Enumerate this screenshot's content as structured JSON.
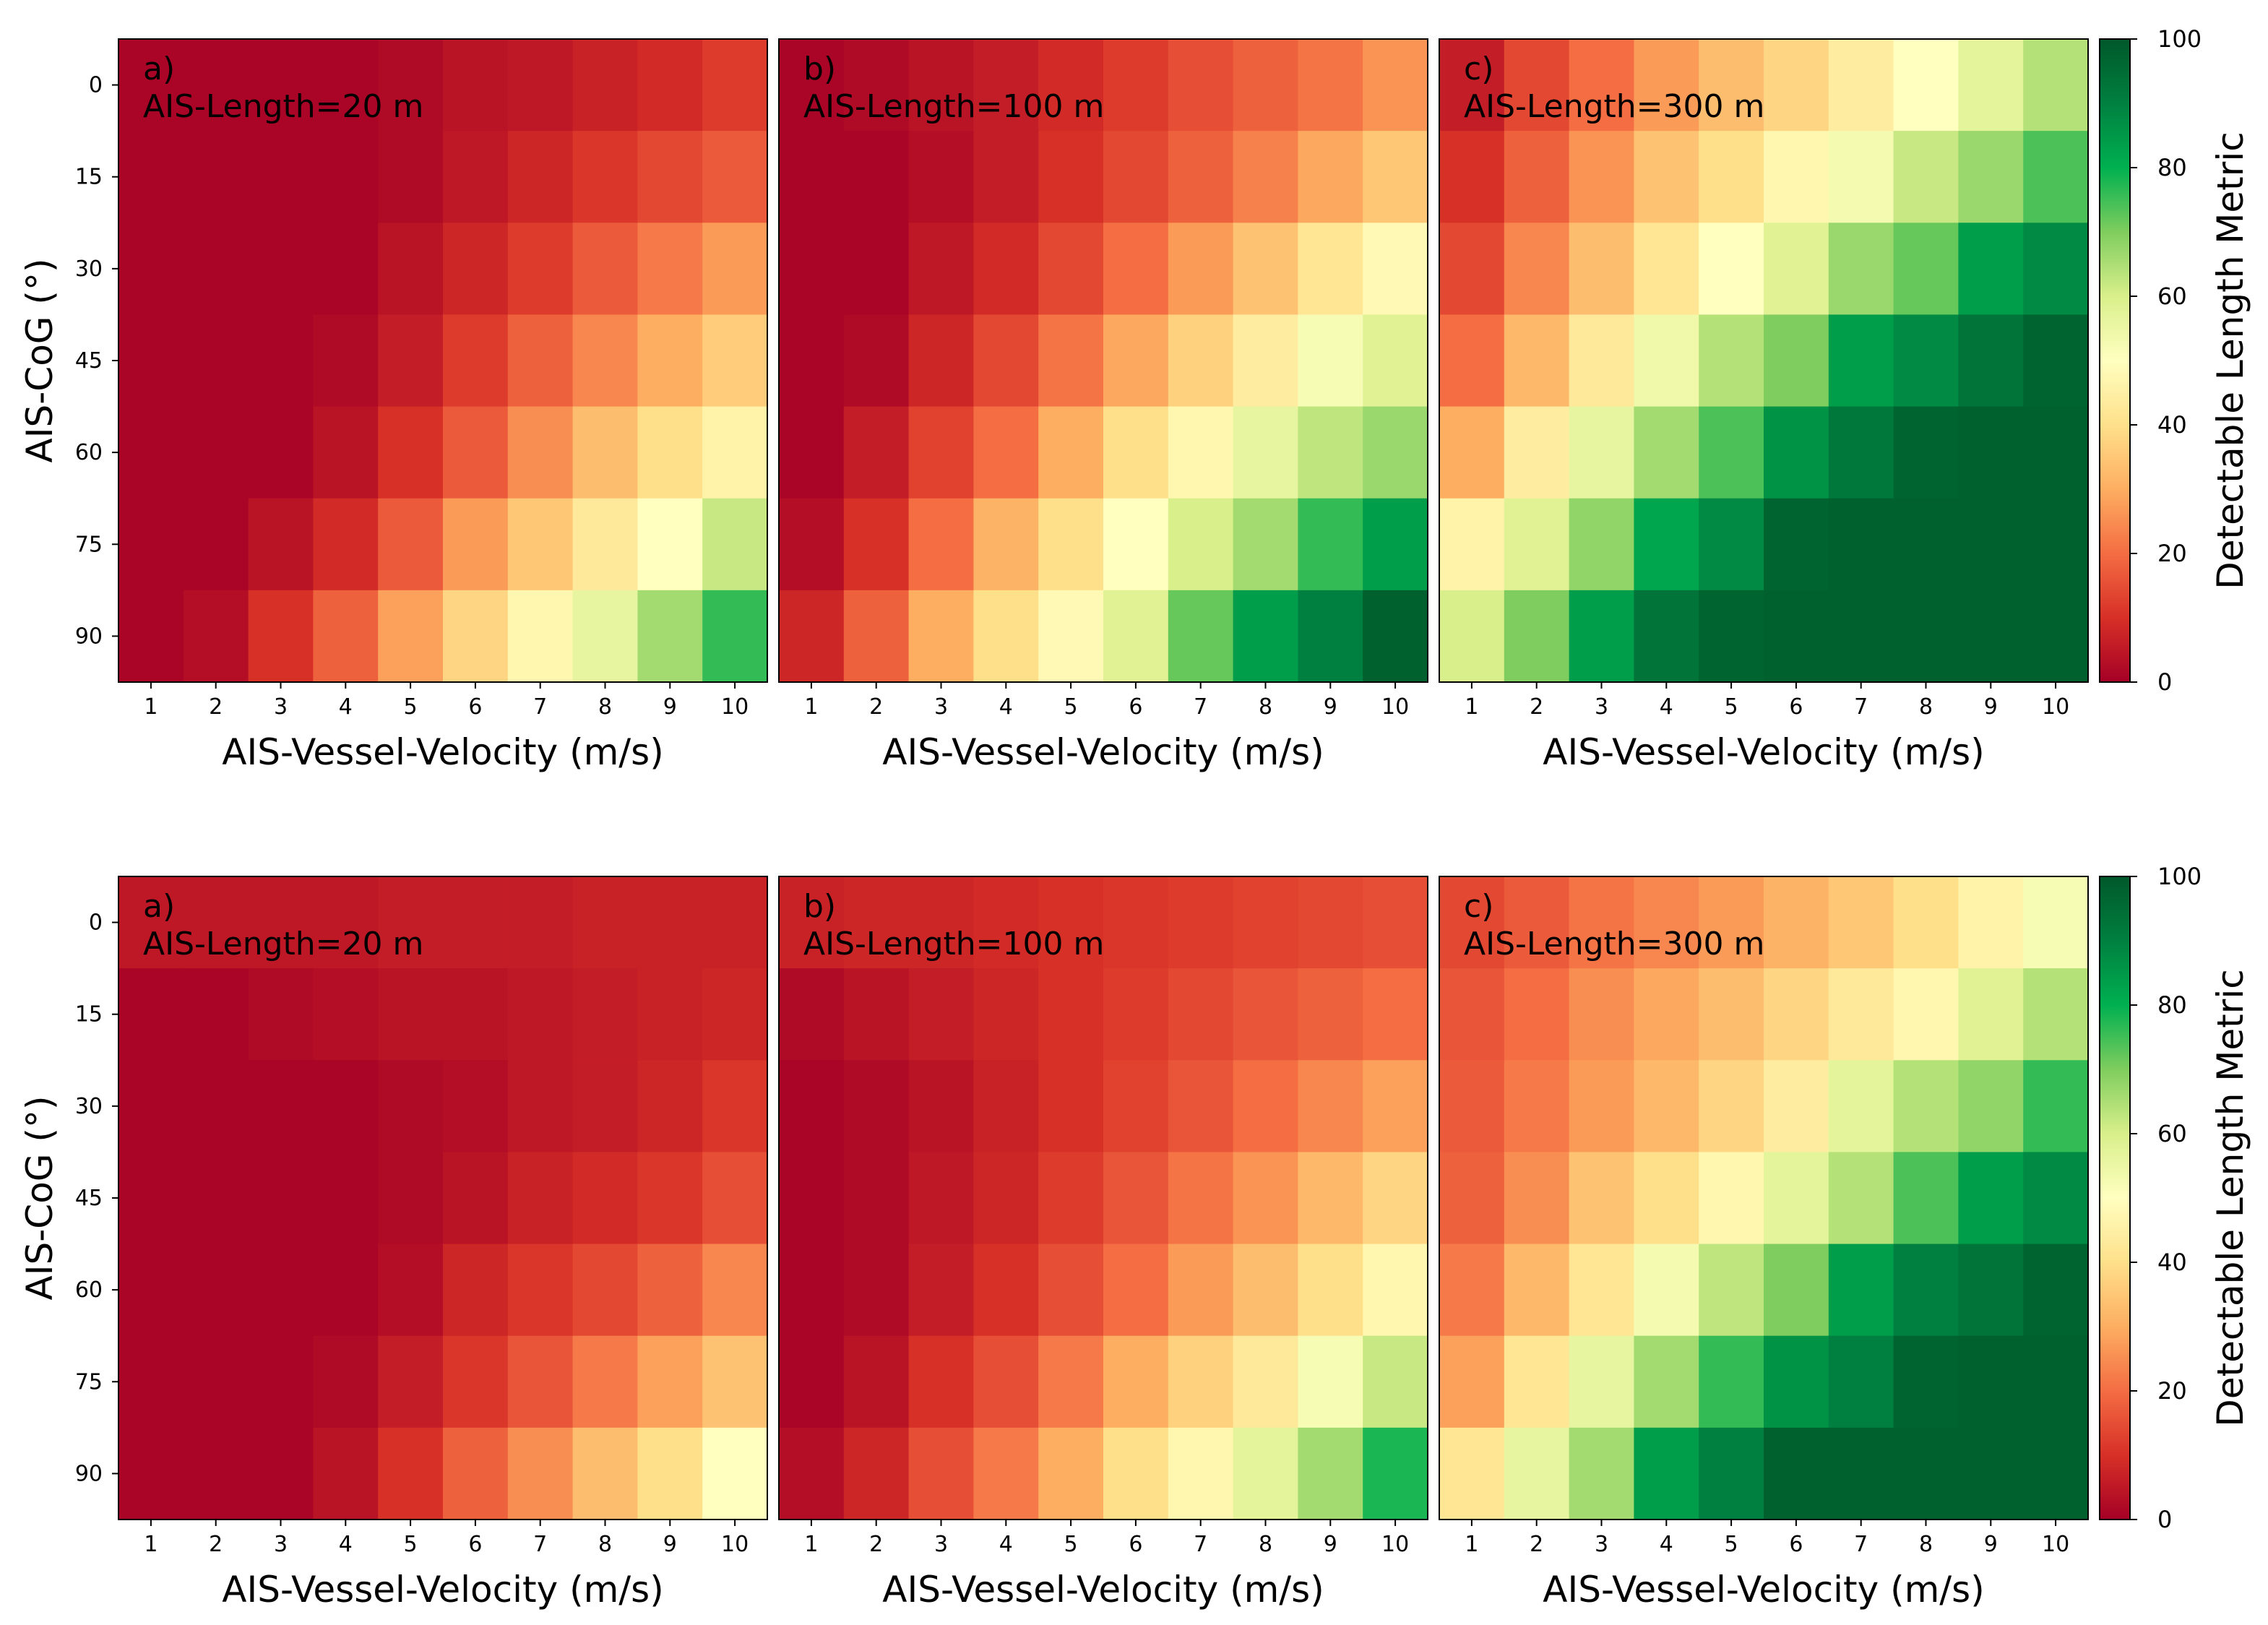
{
  "colorbar": {
    "label": "Detectable Length Metric",
    "range": [
      0,
      100
    ],
    "ticks": [
      "0",
      "20",
      "40",
      "60",
      "80",
      "100"
    ]
  },
  "axes": {
    "xlabel": "AIS-Vessel-Velocity (m/s)",
    "ylabel": "AIS-CoG (°)",
    "xticks": [
      "1",
      "2",
      "3",
      "4",
      "5",
      "6",
      "7",
      "8",
      "9",
      "10"
    ],
    "yticks": [
      "0",
      "15",
      "30",
      "45",
      "60",
      "75",
      "90"
    ]
  },
  "chart_data": [
    {
      "type": "heatmap",
      "row": "top",
      "panel": "a)",
      "title": "AIS-Length=20 m",
      "xlabel": "AIS-Vessel-Velocity (m/s)",
      "ylabel": "AIS-CoG (°)",
      "x": [
        1,
        2,
        3,
        4,
        5,
        6,
        7,
        8,
        9,
        10
      ],
      "y": [
        0,
        15,
        30,
        45,
        60,
        75,
        90
      ],
      "vrange": [
        0,
        100
      ],
      "values": [
        [
          1,
          1,
          1,
          1,
          2,
          4,
          5,
          7,
          9,
          12
        ],
        [
          1,
          1,
          1,
          1,
          2,
          5,
          8,
          11,
          14,
          17
        ],
        [
          1,
          1,
          1,
          1,
          4,
          8,
          12,
          17,
          22,
          27
        ],
        [
          1,
          1,
          1,
          2,
          6,
          12,
          18,
          24,
          30,
          36
        ],
        [
          1,
          1,
          1,
          4,
          10,
          17,
          25,
          33,
          40,
          46
        ],
        [
          1,
          1,
          4,
          9,
          17,
          27,
          35,
          43,
          50,
          62
        ],
        [
          1,
          3,
          10,
          18,
          28,
          38,
          47,
          56,
          66,
          76
        ]
      ]
    },
    {
      "type": "heatmap",
      "row": "top",
      "panel": "b)",
      "title": "AIS-Length=100 m",
      "xlabel": "AIS-Vessel-Velocity (m/s)",
      "ylabel": "",
      "x": [
        1,
        2,
        3,
        4,
        5,
        6,
        7,
        8,
        9,
        10
      ],
      "y": [
        0,
        15,
        30,
        45,
        60,
        75,
        90
      ],
      "vrange": [
        0,
        100
      ],
      "values": [
        [
          1,
          2,
          4,
          6,
          9,
          12,
          15,
          18,
          21,
          26
        ],
        [
          1,
          1,
          3,
          6,
          10,
          14,
          18,
          23,
          29,
          35
        ],
        [
          1,
          1,
          5,
          9,
          14,
          20,
          27,
          34,
          42,
          48
        ],
        [
          1,
          2,
          8,
          14,
          21,
          29,
          37,
          44,
          52,
          58
        ],
        [
          1,
          6,
          13,
          20,
          30,
          40,
          47,
          56,
          63,
          67
        ],
        [
          3,
          10,
          20,
          31,
          40,
          50,
          60,
          66,
          76,
          84
        ],
        [
          8,
          18,
          30,
          40,
          48,
          58,
          72,
          84,
          90,
          98
        ]
      ]
    },
    {
      "type": "heatmap",
      "row": "top",
      "panel": "c)",
      "title": "AIS-Length=300 m",
      "xlabel": "AIS-Vessel-Velocity (m/s)",
      "ylabel": "",
      "x": [
        1,
        2,
        3,
        4,
        5,
        6,
        7,
        8,
        9,
        10
      ],
      "y": [
        0,
        15,
        30,
        45,
        60,
        75,
        90
      ],
      "vrange": [
        0,
        100
      ],
      "values": [
        [
          6,
          14,
          20,
          27,
          33,
          38,
          44,
          50,
          57,
          64
        ],
        [
          10,
          18,
          26,
          34,
          40,
          47,
          53,
          62,
          67,
          74
        ],
        [
          14,
          24,
          33,
          42,
          50,
          58,
          67,
          72,
          84,
          88
        ],
        [
          20,
          32,
          43,
          54,
          64,
          70,
          84,
          88,
          93,
          97
        ],
        [
          30,
          44,
          56,
          66,
          74,
          86,
          92,
          97,
          98,
          98
        ],
        [
          46,
          58,
          68,
          82,
          88,
          97,
          98,
          98,
          98,
          98
        ],
        [
          60,
          70,
          84,
          93,
          97,
          98,
          98,
          98,
          98,
          98
        ]
      ]
    },
    {
      "type": "heatmap",
      "row": "bottom",
      "panel": "a)",
      "title": "AIS-Length=20 m",
      "xlabel": "AIS-Vessel-Velocity (m/s)",
      "ylabel": "AIS-CoG (°)",
      "x": [
        1,
        2,
        3,
        4,
        5,
        6,
        7,
        8,
        9,
        10
      ],
      "y": [
        0,
        15,
        30,
        45,
        60,
        75,
        90
      ],
      "vrange": [
        0,
        100
      ],
      "values": [
        [
          5,
          5,
          5,
          5,
          6,
          6,
          6,
          7,
          7,
          7
        ],
        [
          1,
          1,
          2,
          3,
          4,
          4,
          5,
          6,
          7,
          8
        ],
        [
          1,
          1,
          1,
          1,
          2,
          3,
          5,
          6,
          8,
          11
        ],
        [
          1,
          1,
          1,
          1,
          2,
          4,
          7,
          9,
          11,
          15
        ],
        [
          1,
          1,
          1,
          1,
          3,
          8,
          11,
          14,
          18,
          24
        ],
        [
          1,
          1,
          1,
          2,
          6,
          11,
          16,
          22,
          28,
          34
        ],
        [
          1,
          1,
          1,
          4,
          10,
          18,
          25,
          33,
          40,
          50
        ]
      ]
    },
    {
      "type": "heatmap",
      "row": "bottom",
      "panel": "b)",
      "title": "AIS-Length=100 m",
      "xlabel": "AIS-Vessel-Velocity (m/s)",
      "ylabel": "",
      "x": [
        1,
        2,
        3,
        4,
        5,
        6,
        7,
        8,
        9,
        10
      ],
      "y": [
        0,
        15,
        30,
        45,
        60,
        75,
        90
      ],
      "vrange": [
        0,
        100
      ],
      "values": [
        [
          7,
          8,
          8,
          9,
          10,
          11,
          12,
          13,
          14,
          15
        ],
        [
          2,
          4,
          6,
          8,
          10,
          12,
          14,
          16,
          18,
          20
        ],
        [
          1,
          2,
          4,
          7,
          10,
          13,
          16,
          20,
          24,
          28
        ],
        [
          1,
          2,
          5,
          8,
          12,
          16,
          21,
          26,
          32,
          38
        ],
        [
          1,
          2,
          6,
          10,
          15,
          20,
          27,
          33,
          40,
          47
        ],
        [
          1,
          4,
          10,
          15,
          22,
          30,
          37,
          43,
          52,
          62
        ],
        [
          3,
          8,
          15,
          22,
          30,
          40,
          47,
          57,
          66,
          78
        ]
      ]
    },
    {
      "type": "heatmap",
      "row": "bottom",
      "panel": "c)",
      "title": "AIS-Length=300 m",
      "xlabel": "AIS-Vessel-Velocity (m/s)",
      "ylabel": "",
      "x": [
        1,
        2,
        3,
        4,
        5,
        6,
        7,
        8,
        9,
        10
      ],
      "y": [
        0,
        15,
        30,
        45,
        60,
        75,
        90
      ],
      "vrange": [
        0,
        100
      ],
      "values": [
        [
          14,
          17,
          21,
          24,
          27,
          31,
          35,
          40,
          46,
          52
        ],
        [
          16,
          20,
          25,
          29,
          33,
          38,
          43,
          47,
          58,
          64
        ],
        [
          17,
          22,
          27,
          32,
          38,
          44,
          57,
          64,
          68,
          76
        ],
        [
          18,
          25,
          34,
          40,
          47,
          57,
          64,
          74,
          84,
          88
        ],
        [
          22,
          32,
          42,
          53,
          63,
          70,
          84,
          90,
          93,
          97
        ],
        [
          28,
          42,
          56,
          66,
          76,
          86,
          90,
          97,
          98,
          98
        ],
        [
          42,
          56,
          66,
          84,
          90,
          98,
          98,
          98,
          98,
          98
        ]
      ]
    }
  ]
}
